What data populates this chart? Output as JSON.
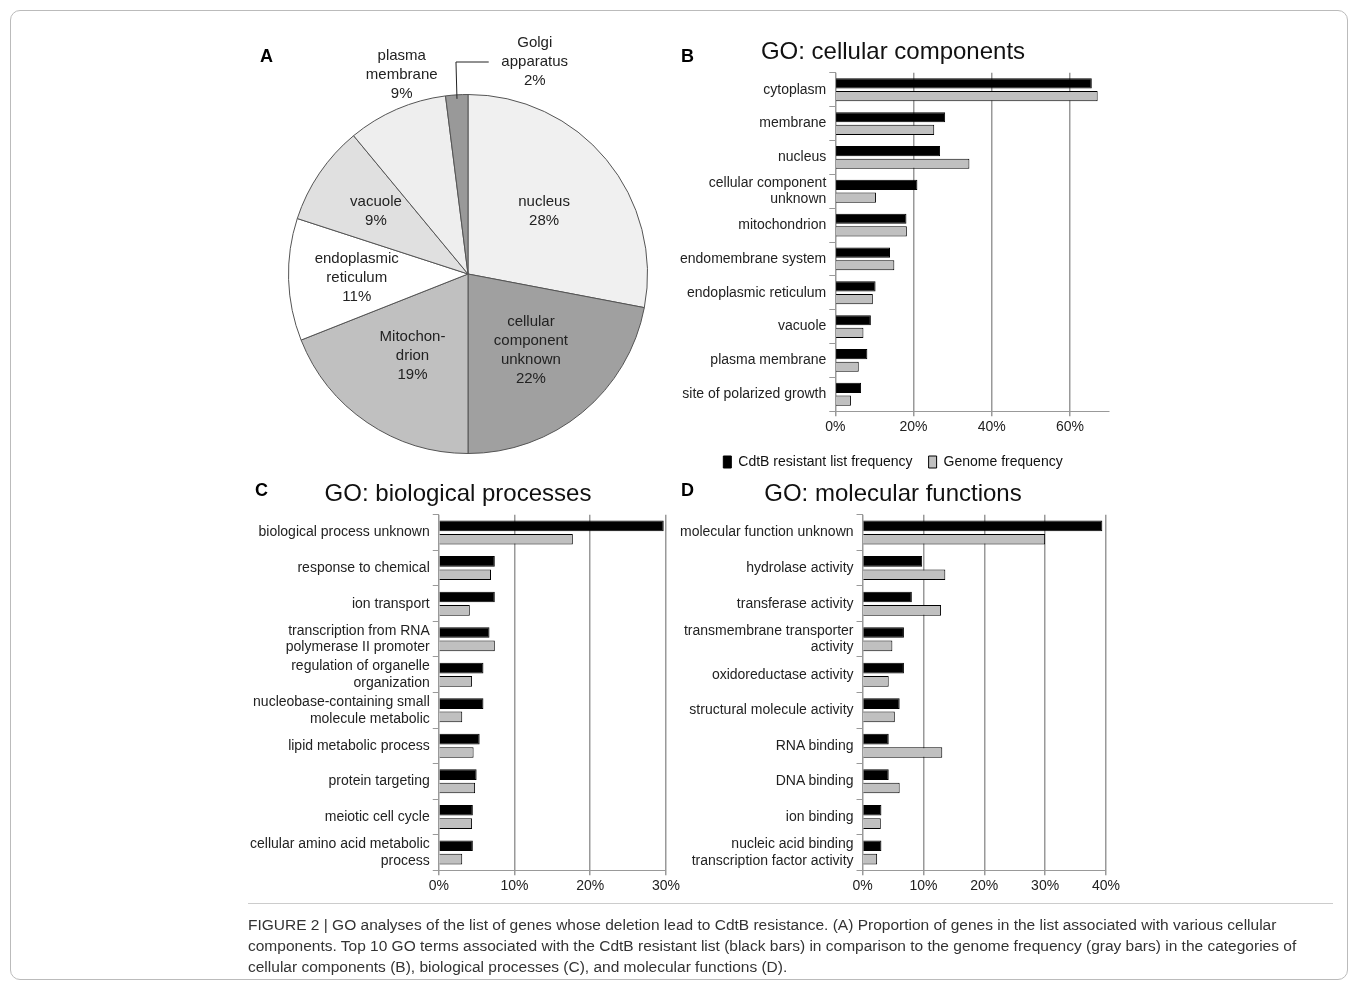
{
  "chart_data": [
    {
      "type": "pie",
      "categories": [
        "nucleus",
        "cellular component unknown",
        "Mitochon-drion",
        "endoplasmic reticulum",
        "vacuole",
        "plasma membrane",
        "Golgi apparatus"
      ],
      "values": [
        28,
        22,
        19,
        11,
        9,
        9,
        2
      ],
      "value_labels": [
        "28%",
        "22%",
        "19%",
        "11%",
        "9%",
        "9%",
        "2%"
      ],
      "colors": [
        "#f0f0f0",
        "#a0a0a0",
        "#c0c0c0",
        "#ffffff",
        "#e0e0e0",
        "#eeeeee",
        "#999999"
      ],
      "annotations": [
        "A"
      ]
    },
    {
      "type": "bar",
      "orientation": "horizontal",
      "title": "GO: cellular components",
      "categories": [
        "cytoplasm",
        "membrane",
        "nucleus",
        "cellular component unknown",
        "mitochondrion",
        "endomembrane system",
        "endoplasmic reticulum",
        "vacuole",
        "plasma membrane",
        "site of polarized growth"
      ],
      "series": [
        {
          "name": "CdtB resistant list frequency",
          "color": "#000000",
          "values": [
            65.6,
            28.1,
            26.8,
            21.0,
            18.2,
            14.0,
            10.3,
            9.1,
            8.2,
            6.6
          ]
        },
        {
          "name": "Genome frequency",
          "color": "#c0c0c0",
          "values": [
            67.1,
            25.3,
            34.3,
            10.4,
            18.3,
            15.1,
            9.6,
            7.2,
            6.0,
            4.0
          ]
        }
      ],
      "xlim": [
        0,
        70
      ],
      "xticks": [
        {
          "value": 0,
          "label": "0%"
        },
        {
          "value": 20,
          "label": "20%"
        },
        {
          "value": 40,
          "label": "40%"
        },
        {
          "value": 60,
          "label": "60%"
        }
      ],
      "grid": "x",
      "legend": "bottom",
      "annotations": [
        "B"
      ]
    },
    {
      "type": "bar",
      "orientation": "horizontal",
      "title": "GO: biological processes",
      "categories": [
        "biological process unknown",
        "response to chemical",
        "ion transport",
        "transcription from RNA polymerase II promoter",
        "regulation of organelle organization",
        "nucleobase-containing small molecule metabolic",
        "lipid metabolic process",
        "protein targeting",
        "meiotic cell cycle",
        "cellular amino acid metabolic process"
      ],
      "series": [
        {
          "color": "#000000",
          "values": [
            29.7,
            7.4,
            7.4,
            6.7,
            5.9,
            5.9,
            5.4,
            5.0,
            4.5,
            4.5
          ]
        },
        {
          "color": "#c0c0c0",
          "values": [
            17.7,
            6.9,
            4.1,
            7.4,
            4.4,
            3.1,
            4.6,
            4.8,
            4.4,
            3.1
          ]
        }
      ],
      "xlim": [
        0,
        30
      ],
      "xticks": [
        {
          "value": 0,
          "label": "0%"
        },
        {
          "value": 10,
          "label": "10%"
        },
        {
          "value": 20,
          "label": "20%"
        },
        {
          "value": 30,
          "label": "30%"
        }
      ],
      "grid": "x",
      "annotations": [
        "C"
      ]
    },
    {
      "type": "bar",
      "orientation": "horizontal",
      "title": "GO: molecular functions",
      "categories": [
        "molecular function unknown",
        "hydrolase activity",
        "transferase activity",
        "transmembrane transporter activity",
        "oxidoreductase activity",
        "structural molecule activity",
        "RNA binding",
        "DNA binding",
        "ion binding",
        "nucleic acid binding transcription factor activity"
      ],
      "series": [
        {
          "color": "#000000",
          "values": [
            39.4,
            9.8,
            8.1,
            6.8,
            6.8,
            6.1,
            4.3,
            4.3,
            3.1,
            3.1
          ]
        },
        {
          "color": "#c0c0c0",
          "values": [
            30.0,
            13.6,
            12.9,
            4.9,
            4.3,
            5.3,
            13.1,
            6.1,
            3.0,
            2.4
          ]
        }
      ],
      "xlim": [
        0,
        40
      ],
      "xticks": [
        {
          "value": 0,
          "label": "0%"
        },
        {
          "value": 10,
          "label": "10%"
        },
        {
          "value": 20,
          "label": "20%"
        },
        {
          "value": 30,
          "label": "30%"
        },
        {
          "value": 40,
          "label": "40%"
        }
      ],
      "grid": "x",
      "annotations": [
        "D",
        "FIGURE 2 | GO analyses of the list of genes whose deletion lead to CdtB resistance. (A) Proportion of genes in the list associated with various cellular components. Top 10 GO terms associated with the CdtB resistant list (black bars) in comparison to the genome frequency (gray bars) in the categories of cellular components (B), biological processes (C), and molecular functions (D)."
      ]
    }
  ]
}
